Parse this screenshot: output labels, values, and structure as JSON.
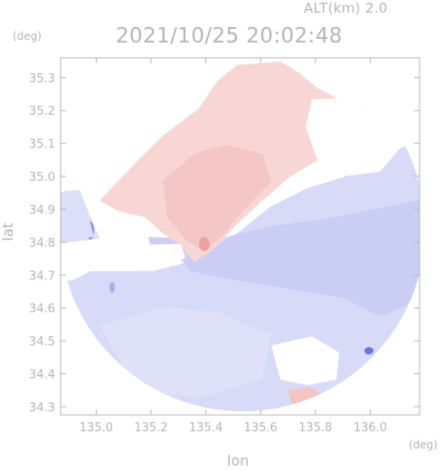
{
  "header": {
    "altitude_label": "ALT(km) 2.0",
    "datetime": "2021/10/25 20:02:48"
  },
  "axes": {
    "lat_unit": "(deg)",
    "lon_unit": "(deg)",
    "lat_label": "lat",
    "lon_label": "lon",
    "lat_ticks": [
      "35.3",
      "35.2",
      "35.1",
      "35.0",
      "34.9",
      "34.8",
      "34.7",
      "34.6",
      "34.5",
      "34.4",
      "34.3"
    ],
    "lon_ticks": [
      "135.0",
      "135.2",
      "135.4",
      "135.6",
      "135.8",
      "136.0"
    ],
    "lat_range": [
      34.275,
      35.36
    ],
    "lon_range": [
      134.87,
      136.18
    ]
  },
  "colors": {
    "axis": "#b5b5b5",
    "approaching": "#f6c9c9",
    "receding": "#d6d9f6",
    "strong_receding": "#7f86dd",
    "strong_approaching": "#ee9a9a"
  }
}
